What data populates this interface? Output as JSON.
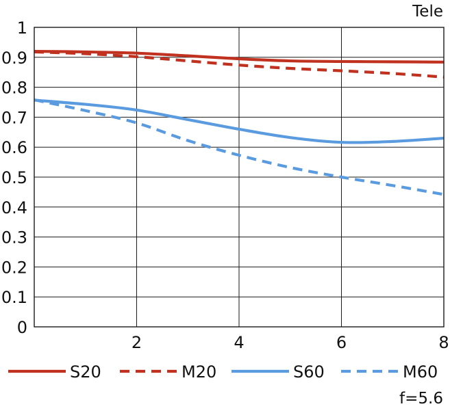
{
  "chart_data": {
    "type": "line",
    "title": "Tele",
    "footnote": "f=5.6",
    "xlabel": "",
    "ylabel": "",
    "xlim": [
      0,
      8
    ],
    "ylim": [
      0,
      1
    ],
    "x_ticks": [
      2,
      4,
      6,
      8
    ],
    "x_tick_labels": [
      "2",
      "4",
      "6",
      "8"
    ],
    "y_ticks": [
      0,
      0.1,
      0.2,
      0.3,
      0.4,
      0.5,
      0.6,
      0.7,
      0.8,
      0.9,
      1
    ],
    "y_tick_labels": [
      "0",
      "0.1",
      "0.2",
      "0.3",
      "0.4",
      "0.5",
      "0.6",
      "0.7",
      "0.8",
      "0.9",
      "1"
    ],
    "grid": true,
    "legend_position": "bottom",
    "series": [
      {
        "name": "S20",
        "color": "#c0321f",
        "dash": "solid",
        "x": [
          0,
          1,
          2,
          3,
          4,
          5,
          6,
          7,
          8
        ],
        "y": [
          0.92,
          0.918,
          0.914,
          0.905,
          0.895,
          0.888,
          0.886,
          0.885,
          0.884
        ]
      },
      {
        "name": "M20",
        "color": "#c0321f",
        "dash": "dashed",
        "x": [
          0,
          1,
          2,
          3,
          4,
          5,
          6,
          7,
          8
        ],
        "y": [
          0.918,
          0.912,
          0.902,
          0.888,
          0.874,
          0.863,
          0.855,
          0.846,
          0.834
        ]
      },
      {
        "name": "S60",
        "color": "#5a9be0",
        "dash": "solid",
        "x": [
          0,
          1,
          2,
          3,
          4,
          5,
          6,
          7,
          8
        ],
        "y": [
          0.757,
          0.743,
          0.724,
          0.692,
          0.66,
          0.632,
          0.616,
          0.619,
          0.63
        ]
      },
      {
        "name": "M60",
        "color": "#5a9be0",
        "dash": "dashed",
        "x": [
          0,
          1,
          2,
          3,
          4,
          5,
          6,
          7,
          8
        ],
        "y": [
          0.758,
          0.722,
          0.681,
          0.622,
          0.573,
          0.532,
          0.5,
          0.472,
          0.442
        ]
      }
    ]
  }
}
